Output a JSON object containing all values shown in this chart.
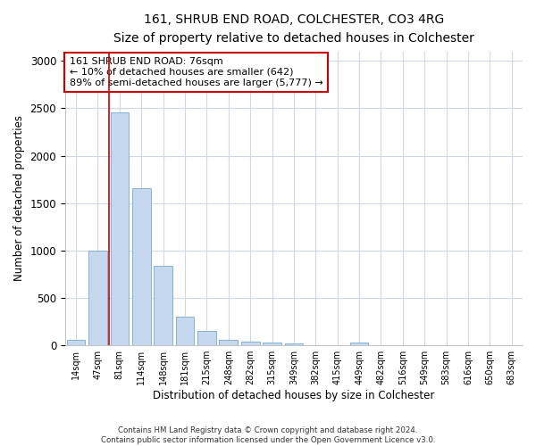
{
  "title": "161, SHRUB END ROAD, COLCHESTER, CO3 4RG",
  "subtitle": "Size of property relative to detached houses in Colchester",
  "xlabel": "Distribution of detached houses by size in Colchester",
  "ylabel": "Number of detached properties",
  "categories": [
    "14sqm",
    "47sqm",
    "81sqm",
    "114sqm",
    "148sqm",
    "181sqm",
    "215sqm",
    "248sqm",
    "282sqm",
    "315sqm",
    "349sqm",
    "382sqm",
    "415sqm",
    "449sqm",
    "482sqm",
    "516sqm",
    "549sqm",
    "583sqm",
    "616sqm",
    "650sqm",
    "683sqm"
  ],
  "values": [
    55,
    1000,
    2460,
    1660,
    840,
    300,
    150,
    55,
    40,
    30,
    20,
    0,
    0,
    30,
    0,
    0,
    0,
    0,
    0,
    0,
    0
  ],
  "bar_color": "#c5d8f0",
  "bar_edge_color": "#7aaad0",
  "vline_color": "#cc0000",
  "annotation_text": "161 SHRUB END ROAD: 76sqm\n← 10% of detached houses are smaller (642)\n89% of semi-detached houses are larger (5,777) →",
  "annotation_box_facecolor": "#ffffff",
  "annotation_box_edgecolor": "#cc0000",
  "ylim": [
    0,
    3100
  ],
  "yticks": [
    0,
    500,
    1000,
    1500,
    2000,
    2500,
    3000
  ],
  "footer_line1": "Contains HM Land Registry data © Crown copyright and database right 2024.",
  "footer_line2": "Contains public sector information licensed under the Open Government Licence v3.0.",
  "background_color": "#ffffff",
  "plot_background": "#ffffff",
  "grid_color": "#d0d8e8"
}
